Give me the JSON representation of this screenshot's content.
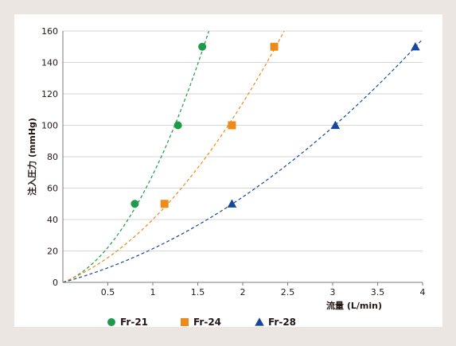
{
  "chart_data": {
    "type": "scatter",
    "title": "",
    "xlabel": "流量 (L/min)",
    "ylabel": "注入圧力 (mmHg)",
    "xlim": [
      0,
      4
    ],
    "ylim": [
      0,
      160
    ],
    "x_ticks": [
      0.5,
      1,
      1.5,
      2,
      2.5,
      3,
      3.5,
      4
    ],
    "y_ticks": [
      0,
      20,
      40,
      60,
      80,
      100,
      120,
      140,
      160
    ],
    "x_tick_labels": [
      "0.5",
      "1",
      "1.5",
      "2",
      "2.5",
      "3",
      "3.5",
      "4"
    ],
    "y_tick_labels": [
      "0",
      "20",
      "40",
      "60",
      "80",
      "100",
      "120",
      "140",
      "160"
    ],
    "grid": "horizontal",
    "legend": "bottom",
    "trendline": "dashed quadratic fit",
    "series": [
      {
        "name": "Fr-21",
        "marker": "circle",
        "color": "#1e9a4a",
        "x": [
          0.8,
          1.28,
          1.55
        ],
        "y": [
          50,
          100,
          150
        ]
      },
      {
        "name": "Fr-24",
        "marker": "square",
        "color": "#ee8a1a",
        "x": [
          1.13,
          1.88,
          2.35
        ],
        "y": [
          50,
          100,
          150
        ]
      },
      {
        "name": "Fr-28",
        "marker": "triangle",
        "color": "#16479a",
        "x": [
          1.88,
          3.03,
          3.92
        ],
        "y": [
          50,
          100,
          150
        ]
      }
    ]
  }
}
